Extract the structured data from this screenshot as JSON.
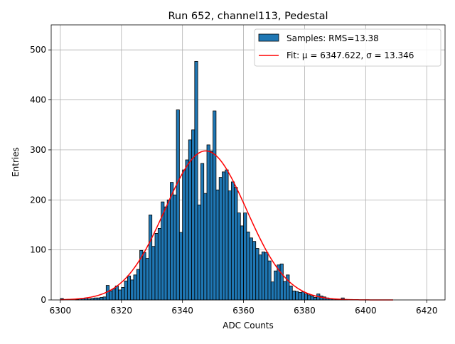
{
  "chart_data": {
    "type": "bar",
    "title": "Run 652, channel113, Pedestal",
    "xlabel": "ADC Counts",
    "ylabel": "Entries",
    "xlim": [
      6297,
      6426
    ],
    "ylim": [
      0,
      550
    ],
    "xticks": [
      6300,
      6320,
      6340,
      6360,
      6380,
      6400,
      6420
    ],
    "yticks": [
      0,
      100,
      200,
      300,
      400,
      500
    ],
    "grid": true,
    "legend_position": "top-right",
    "bin_width": 1,
    "histogram": {
      "name": "Samples: RMS=13.38",
      "color": "#1f77b4",
      "edge_color": "#000000",
      "bin_start": [
        6300,
        6301,
        6302,
        6303,
        6304,
        6305,
        6306,
        6307,
        6308,
        6309,
        6310,
        6311,
        6312,
        6313,
        6314,
        6315,
        6316,
        6317,
        6318,
        6319,
        6320,
        6321,
        6322,
        6323,
        6324,
        6325,
        6326,
        6327,
        6328,
        6329,
        6330,
        6331,
        6332,
        6333,
        6334,
        6335,
        6336,
        6337,
        6338,
        6339,
        6340,
        6341,
        6342,
        6343,
        6344,
        6345,
        6346,
        6347,
        6348,
        6349,
        6350,
        6351,
        6352,
        6353,
        6354,
        6355,
        6356,
        6357,
        6358,
        6359,
        6360,
        6361,
        6362,
        6363,
        6364,
        6365,
        6366,
        6367,
        6368,
        6369,
        6370,
        6371,
        6372,
        6373,
        6374,
        6375,
        6376,
        6377,
        6378,
        6379,
        6380,
        6381,
        6382,
        6383,
        6384,
        6385,
        6386,
        6387,
        6388,
        6389,
        6390,
        6391,
        6392,
        6393,
        6394,
        6395
      ],
      "counts": [
        3,
        0,
        0,
        0,
        0,
        1,
        2,
        3,
        4,
        2,
        3,
        4,
        4,
        5,
        6,
        29,
        18,
        22,
        28,
        20,
        25,
        38,
        48,
        40,
        50,
        61,
        99,
        95,
        83,
        170,
        107,
        133,
        143,
        196,
        186,
        200,
        235,
        210,
        380,
        135,
        260,
        280,
        320,
        340,
        477,
        190,
        273,
        213,
        310,
        298,
        378,
        220,
        245,
        256,
        260,
        218,
        236,
        225,
        174,
        148,
        174,
        136,
        124,
        117,
        103,
        90,
        96,
        95,
        78,
        36,
        58,
        70,
        72,
        37,
        50,
        28,
        18,
        17,
        15,
        16,
        12,
        10,
        8,
        5,
        12,
        8,
        6,
        4,
        3,
        2,
        1,
        1,
        4,
        1,
        0,
        0
      ]
    },
    "fit": {
      "name": "Fit: μ = 6347.622, σ = 13.346",
      "color": "#ff0000",
      "type": "gaussian",
      "mu": 6347.622,
      "sigma": 13.346,
      "amplitude": 298,
      "x_range": [
        6300,
        6409
      ]
    }
  }
}
